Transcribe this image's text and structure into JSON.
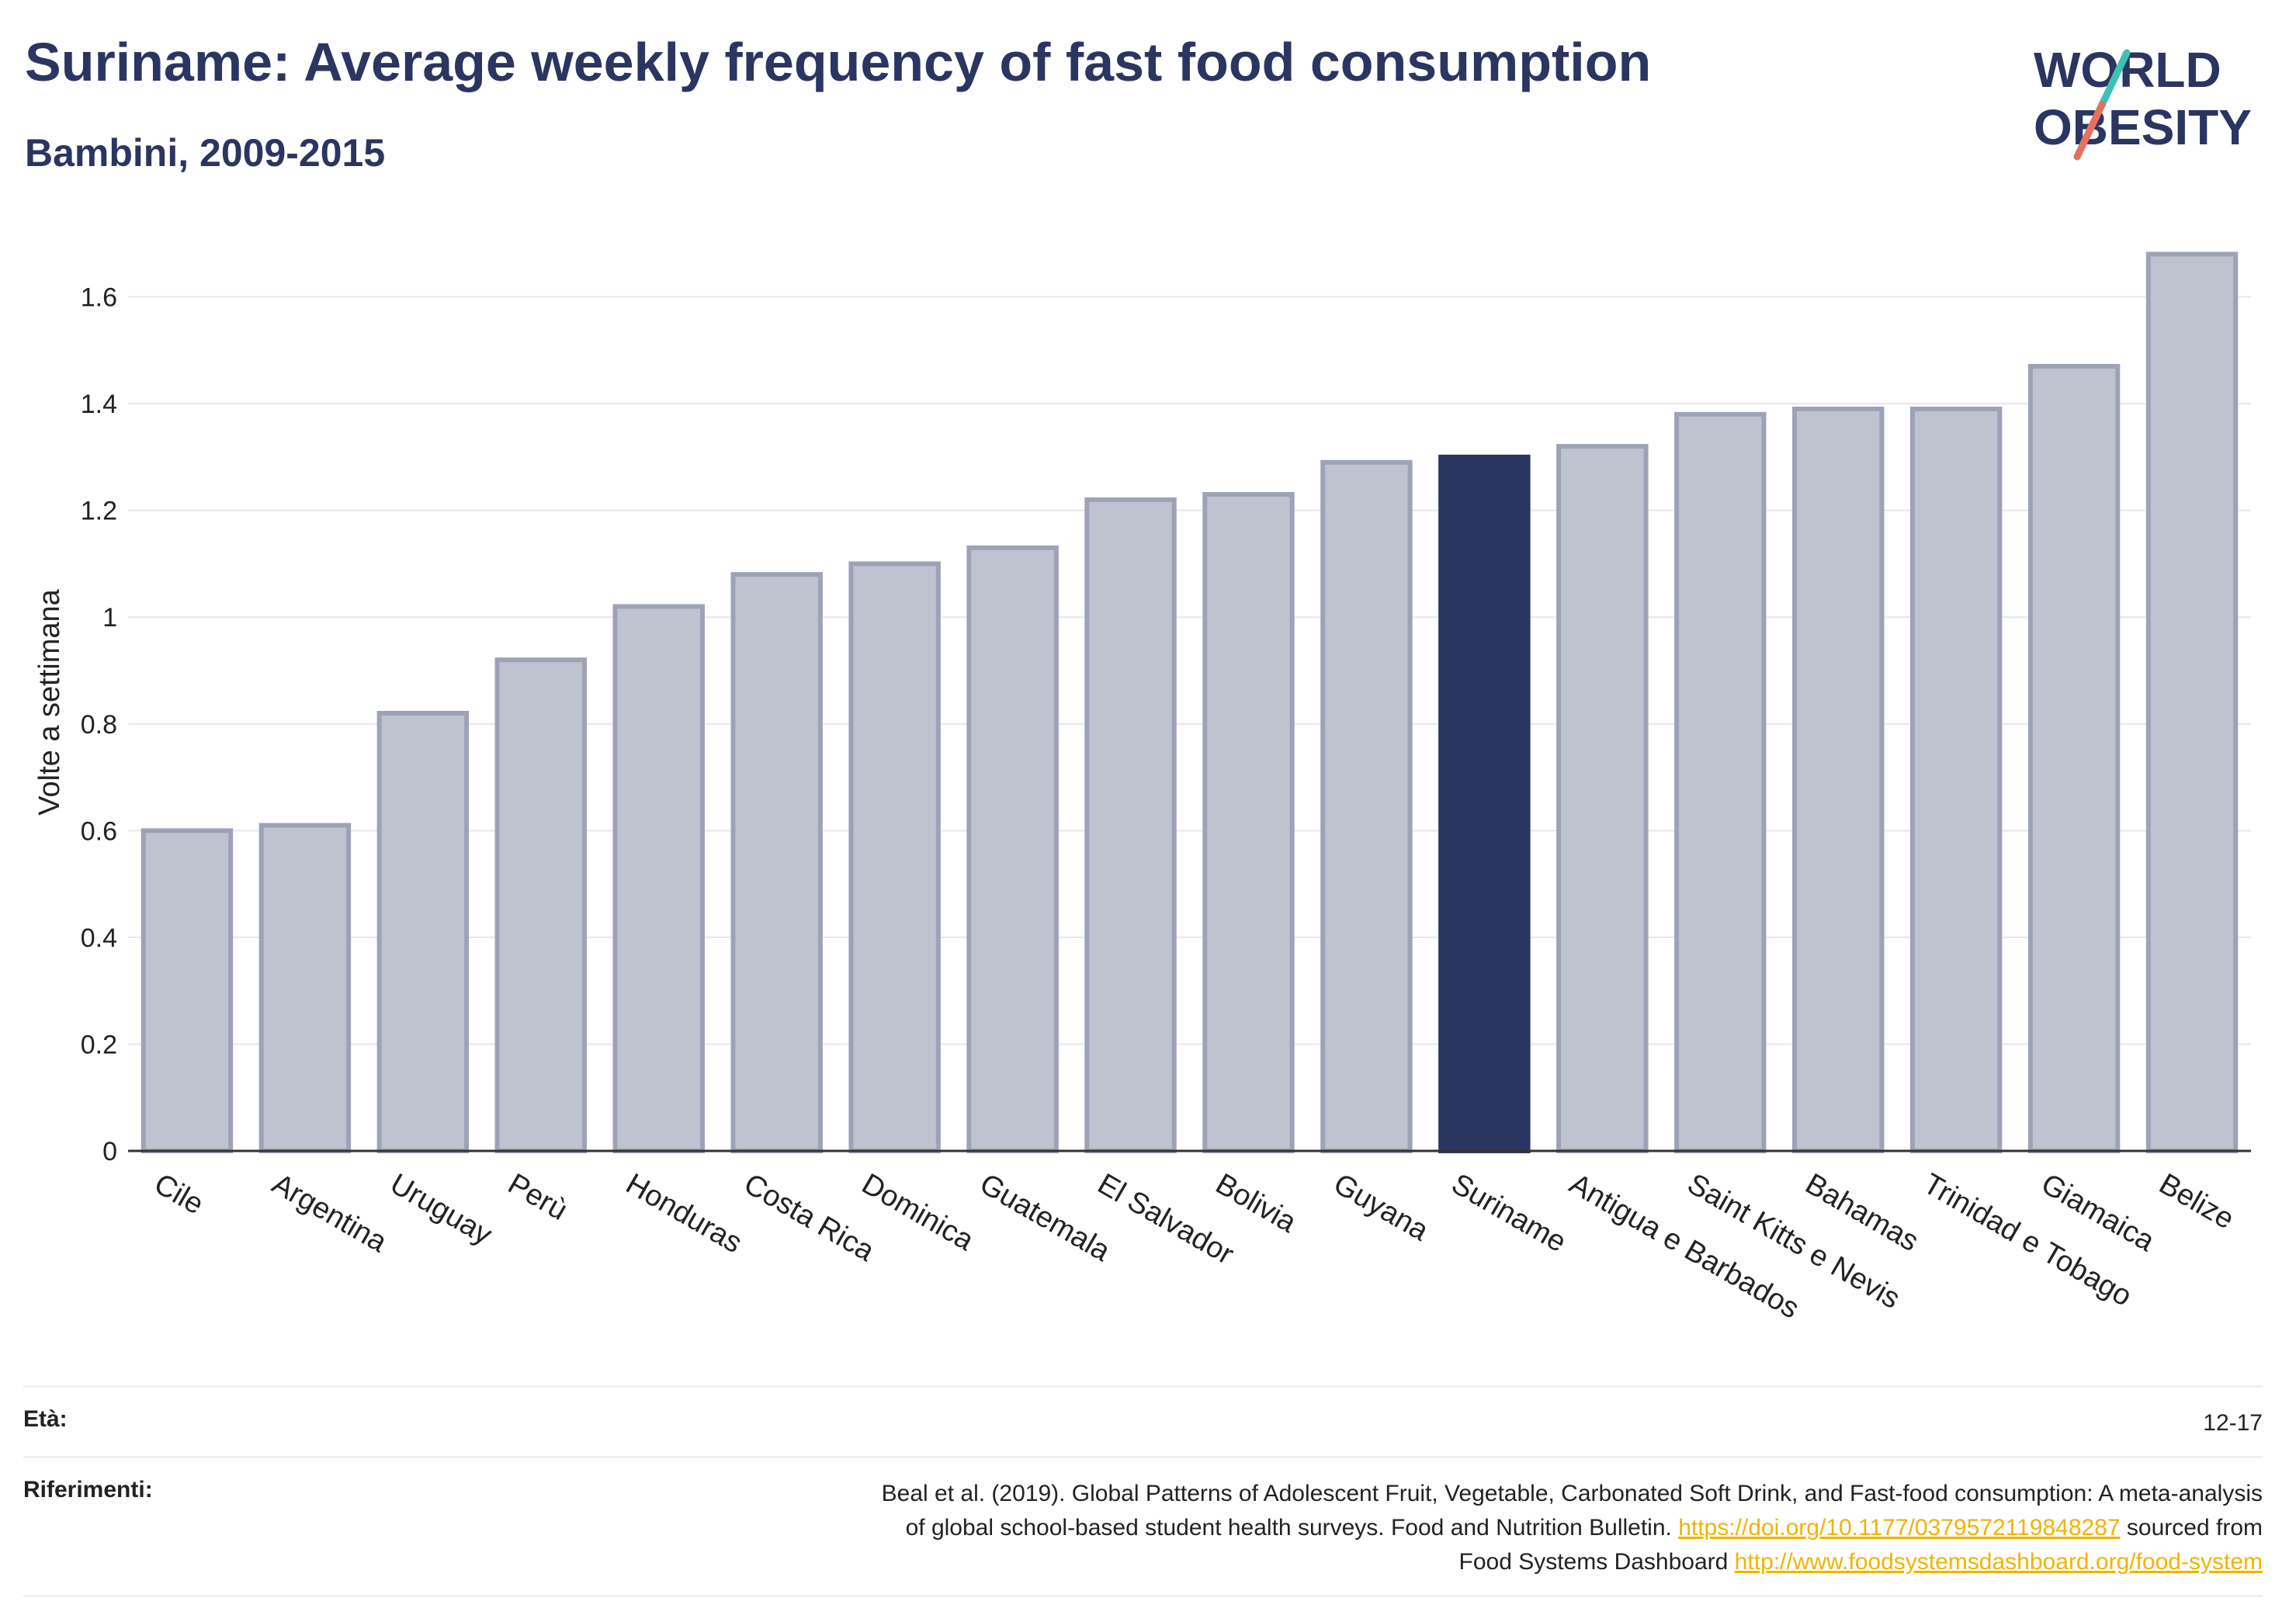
{
  "header": {
    "title": "Suriname: Average weekly frequency of fast food consumption",
    "subtitle": "Bambini, 2009-2015"
  },
  "logo": {
    "line1": "WORLD",
    "line2": "OBESITY",
    "accent_colors": [
      "#3cc2b4",
      "#e8705c"
    ]
  },
  "colors": {
    "bar": "#bfc2cf",
    "bar_border": "#9ea2b8",
    "highlight": "#2b3561",
    "grid": "#e6e7ec",
    "axis": "#333333"
  },
  "chart_data": {
    "type": "bar",
    "ylabel": "Volte a settimana",
    "xlabel": "",
    "ylim": [
      0,
      1.72
    ],
    "yticks": [
      0,
      0.2,
      0.4,
      0.6,
      0.8,
      1,
      1.2,
      1.4,
      1.6
    ],
    "ytick_labels": [
      "0",
      "0.2",
      "0.4",
      "0.6",
      "0.8",
      "1",
      "1.2",
      "1.4",
      "1.6"
    ],
    "grid": true,
    "highlight": "Suriname",
    "categories": [
      "Cile",
      "Argentina",
      "Uruguay",
      "Perù",
      "Honduras",
      "Costa Rica",
      "Dominica",
      "Guatemala",
      "El Salvador",
      "Bolivia",
      "Guyana",
      "Suriname",
      "Antigua e Barbados",
      "Saint Kitts e Nevis",
      "Bahamas",
      "Trinidad e Tobago",
      "Giamaica",
      "Belize"
    ],
    "values": [
      0.6,
      0.61,
      0.82,
      0.92,
      1.02,
      1.08,
      1.1,
      1.13,
      1.22,
      1.23,
      1.29,
      1.3,
      1.32,
      1.38,
      1.39,
      1.39,
      1.47,
      1.68
    ]
  },
  "footer": {
    "age_label": "Età:",
    "age_value": "12-17",
    "refs_label": "Riferimenti:",
    "refs_line1": "Beal et al. (2019). Global Patterns of Adolescent Fruit, Vegetable, Carbonated Soft Drink, and Fast-food consumption: A meta-analysis",
    "refs_line2_text": "of global school-based student health surveys. Food and Nutrition Bulletin. ",
    "refs_line2_link": "https://doi.org/10.1177/0379572119848287",
    "refs_line2_after": " sourced from",
    "refs_line3_text": "Food Systems Dashboard ",
    "refs_line3_link": "http://www.foodsystemsdashboard.org/food-system"
  }
}
